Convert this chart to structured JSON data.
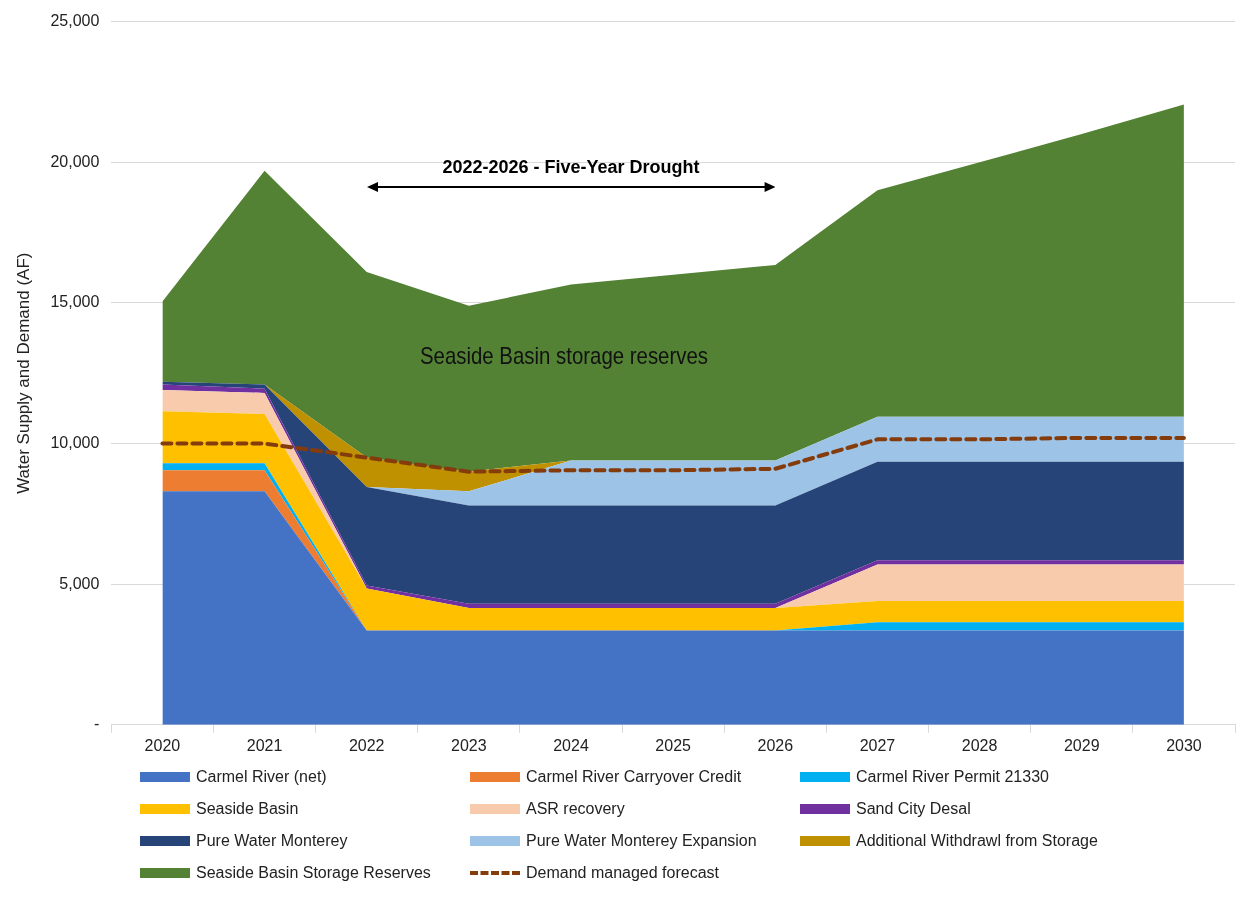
{
  "chart_data": {
    "type": "area",
    "ylabel": "Water Supply and Demand (AF)",
    "categories": [
      "2020",
      "2021",
      "2022",
      "2023",
      "2024",
      "2025",
      "2026",
      "2027",
      "2028",
      "2029",
      "2030"
    ],
    "stacked": true,
    "series": [
      {
        "name": "Carmel River (net)",
        "color": "#4472c4",
        "values": [
          8300,
          8300,
          3350,
          3350,
          3350,
          3350,
          3350,
          3350,
          3350,
          3350,
          3350
        ]
      },
      {
        "name": "Carmel River Carryover Credit",
        "color": "#ed7d31",
        "values": [
          750,
          750,
          0,
          0,
          0,
          0,
          0,
          0,
          0,
          0,
          0
        ]
      },
      {
        "name": "Carmel River Permit 21330",
        "color": "#00b0f0",
        "values": [
          250,
          250,
          0,
          0,
          0,
          0,
          0,
          300,
          300,
          300,
          300
        ]
      },
      {
        "name": "Seaside Basin",
        "color": "#ffc000",
        "values": [
          1850,
          1750,
          1500,
          800,
          800,
          800,
          800,
          750,
          750,
          750,
          750
        ]
      },
      {
        "name": "ASR recovery",
        "color": "#f8cbad",
        "values": [
          750,
          750,
          0,
          0,
          0,
          0,
          0,
          1300,
          1300,
          1300,
          1300
        ]
      },
      {
        "name": "Sand City Desal",
        "color": "#7030a0",
        "values": [
          200,
          150,
          100,
          150,
          150,
          150,
          150,
          150,
          150,
          150,
          150
        ]
      },
      {
        "name": "Pure Water Monterey",
        "color": "#264478",
        "values": [
          100,
          150,
          3500,
          3500,
          3500,
          3500,
          3500,
          3500,
          3500,
          3500,
          3500
        ]
      },
      {
        "name": "Pure Water Monterey Expansion",
        "color": "#9dc3e6",
        "values": [
          0,
          0,
          0,
          500,
          1600,
          1600,
          1600,
          1600,
          1600,
          1600,
          1600
        ]
      },
      {
        "name": "Additional Withdrawl from Storage",
        "color": "#bf9000",
        "values": [
          0,
          0,
          1050,
          700,
          0,
          0,
          0,
          0,
          0,
          0,
          0
        ]
      },
      {
        "name": "Seaside Basin Storage Reserves",
        "color": "#548235",
        "values": [
          2850,
          7600,
          6600,
          5900,
          6250,
          6600,
          6950,
          8050,
          9050,
          10050,
          11100
        ]
      },
      {
        "name": "Demand managed forecast",
        "color": "#843c0c",
        "type": "line",
        "line_style": "dashed",
        "marker": "none",
        "values": [
          10000,
          10000,
          9500,
          9000,
          9050,
          9050,
          9100,
          10150,
          10150,
          10200,
          10200
        ]
      }
    ],
    "ylim": [
      0,
      25000
    ],
    "yticks": [
      {
        "value": 0,
        "label": "-"
      },
      {
        "value": 5000,
        "label": "5,000"
      },
      {
        "value": 10000,
        "label": "10,000"
      },
      {
        "value": 15000,
        "label": "15,000"
      },
      {
        "value": 20000,
        "label": "20,000"
      },
      {
        "value": 25000,
        "label": "25,000"
      }
    ],
    "grid": "y",
    "legend": "bottom",
    "annotations": [
      "2022-2026 - Five-Year Drought",
      "Seaside Basin storage reserves"
    ]
  }
}
